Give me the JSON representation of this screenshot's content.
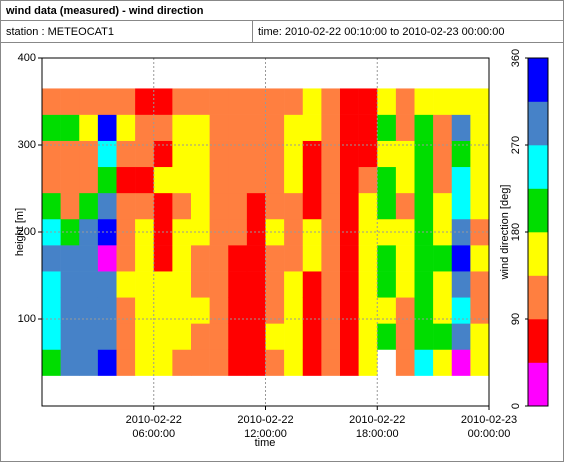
{
  "chart_data": {
    "type": "heatmap",
    "title": "wind data (measured) - wind direction",
    "station": "station : METEOCAT1",
    "time_range": "time: 2010-02-22 00:10:00 to 2010-02-23 00:00:00",
    "xlabel": "time",
    "ylabel": "height [m]",
    "x": [
      "2010-02-22 00:00:00",
      "2010-02-22 01:00:00",
      "2010-02-22 02:00:00",
      "2010-02-22 03:00:00",
      "2010-02-22 04:00:00",
      "2010-02-22 05:00:00",
      "2010-02-22 06:00:00",
      "2010-02-22 07:00:00",
      "2010-02-22 08:00:00",
      "2010-02-22 09:00:00",
      "2010-02-22 10:00:00",
      "2010-02-22 11:00:00",
      "2010-02-22 12:00:00",
      "2010-02-22 13:00:00",
      "2010-02-22 14:00:00",
      "2010-02-22 15:00:00",
      "2010-02-22 16:00:00",
      "2010-02-22 17:00:00",
      "2010-02-22 18:00:00",
      "2010-02-22 19:00:00",
      "2010-02-22 20:00:00",
      "2010-02-22 21:00:00",
      "2010-02-22 22:00:00",
      "2010-02-22 23:00:00"
    ],
    "y": [
      50,
      80,
      110,
      140,
      170,
      200,
      230,
      260,
      290,
      320,
      350
    ],
    "values": [
      [
        200,
        250,
        250,
        250,
        290,
        250,
        200,
        110,
        110,
        200,
        110
      ],
      [
        290,
        290,
        290,
        290,
        290,
        200,
        110,
        110,
        110,
        200,
        110
      ],
      [
        290,
        290,
        290,
        290,
        290,
        290,
        200,
        110,
        110,
        160,
        110
      ],
      [
        340,
        290,
        290,
        290,
        20,
        340,
        290,
        200,
        250,
        340,
        110
      ],
      [
        110,
        110,
        110,
        160,
        110,
        110,
        110,
        70,
        110,
        160,
        110
      ],
      [
        160,
        160,
        160,
        160,
        160,
        160,
        110,
        70,
        110,
        110,
        70
      ],
      [
        160,
        160,
        160,
        160,
        70,
        70,
        70,
        160,
        70,
        110,
        70
      ],
      [
        110,
        160,
        160,
        160,
        160,
        160,
        110,
        160,
        160,
        160,
        110
      ],
      [
        110,
        110,
        160,
        110,
        110,
        160,
        160,
        160,
        160,
        160,
        110
      ],
      [
        110,
        110,
        110,
        110,
        110,
        110,
        110,
        110,
        110,
        110,
        110
      ],
      [
        70,
        70,
        70,
        70,
        70,
        110,
        110,
        110,
        110,
        110,
        110
      ],
      [
        70,
        70,
        70,
        70,
        70,
        70,
        70,
        110,
        110,
        110,
        110
      ],
      [
        110,
        160,
        110,
        110,
        110,
        160,
        110,
        110,
        110,
        110,
        110
      ],
      [
        160,
        160,
        160,
        160,
        110,
        110,
        110,
        160,
        160,
        160,
        110
      ],
      [
        70,
        70,
        70,
        70,
        160,
        160,
        70,
        70,
        70,
        160,
        160
      ],
      [
        110,
        110,
        110,
        110,
        110,
        110,
        110,
        110,
        110,
        110,
        110
      ],
      [
        70,
        70,
        70,
        70,
        70,
        70,
        70,
        70,
        70,
        70,
        70
      ],
      [
        160,
        160,
        160,
        160,
        160,
        160,
        160,
        110,
        70,
        70,
        70
      ],
      [
        null,
        200,
        160,
        200,
        200,
        160,
        200,
        200,
        160,
        200,
        160
      ],
      [
        110,
        110,
        110,
        160,
        160,
        160,
        110,
        160,
        160,
        110,
        110
      ],
      [
        250,
        200,
        200,
        200,
        200,
        200,
        200,
        200,
        200,
        200,
        160
      ],
      [
        160,
        200,
        160,
        160,
        200,
        160,
        160,
        110,
        110,
        110,
        160
      ],
      [
        20,
        290,
        250,
        290,
        340,
        290,
        250,
        250,
        200,
        290,
        160
      ],
      [
        160,
        160,
        110,
        110,
        160,
        110,
        160,
        160,
        160,
        160,
        160
      ]
    ],
    "xlim": [
      "2010-02-22 00:00:00",
      "2010-02-23 00:00:00"
    ],
    "xticks": [
      "2010-02-22 06:00:00",
      "2010-02-22 12:00:00",
      "2010-02-22 18:00:00",
      "2010-02-23 00:00:00"
    ],
    "ylim": [
      0,
      400
    ],
    "yticks": [
      100,
      200,
      300,
      400
    ],
    "grid": true,
    "colorbar": {
      "label": "wind direction [deg]",
      "lim": [
        0,
        360
      ],
      "ticks": [
        0,
        90,
        180,
        270,
        360
      ],
      "colors": [
        "#ff00ff",
        "#ff0000",
        "#ff7f40",
        "#ffff00",
        "#00dd00",
        "#00ffff",
        "#4682c8",
        "#0000ff"
      ]
    }
  }
}
